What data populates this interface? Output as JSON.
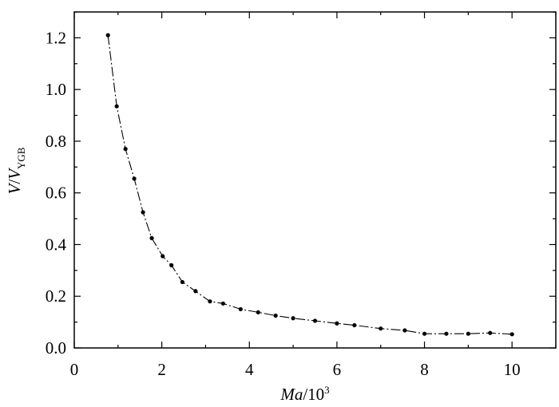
{
  "chart_data": {
    "type": "line",
    "title": "",
    "xlabel": {
      "italic": "Ma",
      "plain": "/10",
      "superscript": "3"
    },
    "ylabel": {
      "italic": "V",
      "plain": "/",
      "italic2": "V",
      "subscript": "YGB"
    },
    "xlim": [
      0,
      11
    ],
    "ylim": [
      0,
      1.3
    ],
    "x_ticks": [
      0,
      2,
      4,
      6,
      8,
      10
    ],
    "x_tick_labels": [
      "0",
      "2",
      "4",
      "6",
      "8",
      "10"
    ],
    "y_ticks": [
      0,
      0.2,
      0.4,
      0.6,
      0.8,
      1.0,
      1.2
    ],
    "y_tick_labels": [
      "0.0",
      "0.2",
      "0.4",
      "0.6",
      "0.8",
      "1.0",
      "1.2"
    ],
    "grid": false,
    "legend": "none",
    "series": [
      {
        "line_style": "dash-dot",
        "marker": "dot",
        "color": "#000000",
        "x": [
          0.77,
          0.97,
          1.17,
          1.37,
          1.57,
          1.77,
          2.02,
          2.22,
          2.47,
          2.77,
          3.1,
          3.4,
          3.8,
          4.2,
          4.6,
          5.0,
          5.5,
          6.0,
          6.4,
          7.0,
          7.55,
          8.0,
          8.5,
          9.0,
          9.5,
          10.0
        ],
        "y": [
          1.21,
          0.935,
          0.77,
          0.655,
          0.525,
          0.425,
          0.355,
          0.32,
          0.255,
          0.22,
          0.18,
          0.172,
          0.15,
          0.138,
          0.125,
          0.115,
          0.105,
          0.095,
          0.088,
          0.075,
          0.068,
          0.055,
          0.055,
          0.055,
          0.058,
          0.053
        ]
      }
    ]
  }
}
